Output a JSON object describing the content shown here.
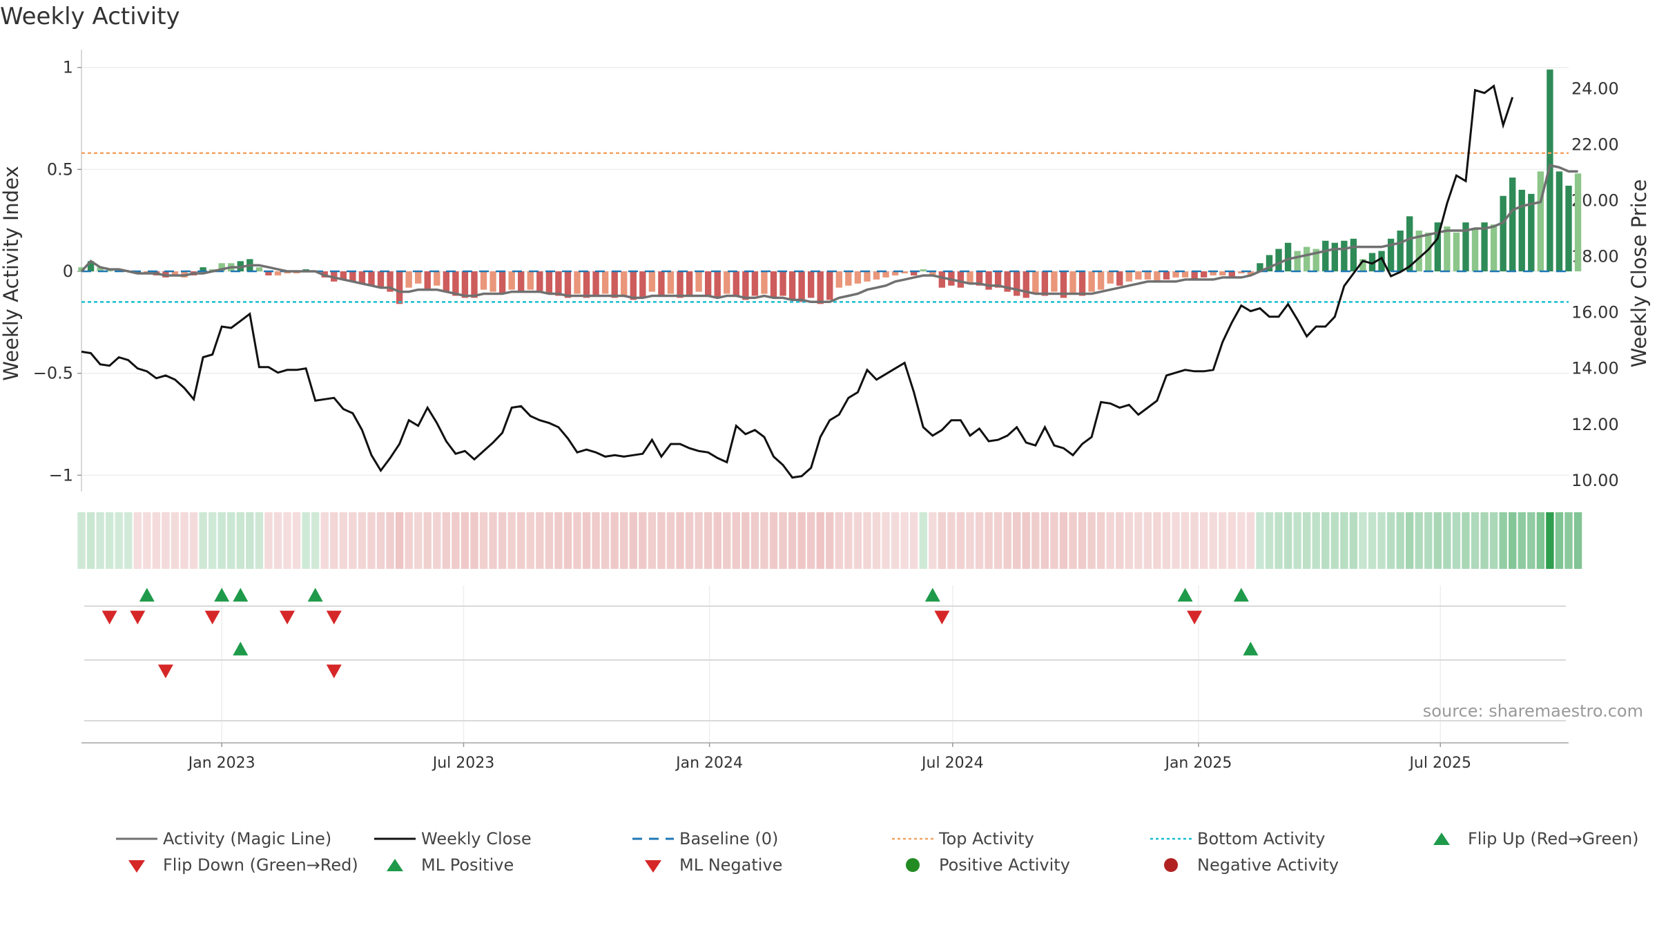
{
  "title": "Weekly Activity",
  "source": "source: sharemaestro.com",
  "colors": {
    "pos_strong": "#2e8b57",
    "pos_weak": "#8cc68a",
    "neg_strong": "#cd5c5c",
    "neg_weak": "#e9967a",
    "magic_line": "#707070",
    "close": "#111111",
    "baseline": "#1f77b4",
    "top": "#f4a261",
    "bottom": "#17becf",
    "flip_up": "#1e9a4a",
    "flip_down": "#d62728",
    "pos_dot": "#228b22",
    "neg_dot": "#b22222"
  },
  "legend": [
    {
      "label": "Activity (Magic Line)",
      "kind": "line",
      "color": "#707070"
    },
    {
      "label": "Weekly Close",
      "kind": "line",
      "color": "#111111"
    },
    {
      "label": "Baseline (0)",
      "kind": "dash",
      "color": "#1f77b4"
    },
    {
      "label": "Top Activity",
      "kind": "dot",
      "color": "#f4a261"
    },
    {
      "label": "Bottom Activity",
      "kind": "dot",
      "color": "#17becf"
    },
    {
      "label": "Flip Up (Red→Green)",
      "kind": "tri-up",
      "color": "#1e9a4a"
    },
    {
      "label": "Flip Down (Green→Red)",
      "kind": "tri-down",
      "color": "#d62728"
    },
    {
      "label": "ML Positive",
      "kind": "tri-up",
      "color": "#1e9a4a"
    },
    {
      "label": "ML Negative",
      "kind": "tri-down",
      "color": "#d62728"
    },
    {
      "label": "Positive Activity",
      "kind": "circle",
      "color": "#228b22"
    },
    {
      "label": "Negative Activity",
      "kind": "circle",
      "color": "#b22222"
    }
  ],
  "chart_data": {
    "type": "bar",
    "title": "Weekly Activity",
    "ylabel": "Weekly Activity Index",
    "y2label": "Weekly Close Price",
    "ylim": [
      -1.08,
      1.06
    ],
    "y2lim": [
      9.6,
      25.2
    ],
    "yticks": [
      "1",
      "0.5",
      "0",
      "−0.5",
      "−1"
    ],
    "ytick_values": [
      1,
      0.5,
      0,
      -0.5,
      -1
    ],
    "y2ticks": [
      "24.00",
      "22.00",
      "20.00",
      "18.00",
      "16.00",
      "14.00",
      "12.00",
      "10.00"
    ],
    "y2tick_values": [
      24,
      22,
      20,
      18,
      16,
      14,
      12,
      10
    ],
    "xlim": [
      "2022-09-18",
      "2025-10-05"
    ],
    "xticks": [
      {
        "date": "2023-01-01",
        "label": "Jan 2023"
      },
      {
        "date": "2023-07-01",
        "label": "Jul 2023"
      },
      {
        "date": "2024-01-01",
        "label": "Jan 2024"
      },
      {
        "date": "2024-07-01",
        "label": "Jul 2024"
      },
      {
        "date": "2025-01-01",
        "label": "Jan 2025"
      },
      {
        "date": "2025-07-01",
        "label": "Jul 2025"
      }
    ],
    "top_activity": 0.58,
    "bottom_activity": -0.15,
    "baseline": 0,
    "start_date": "2022-09-18",
    "series": [
      {
        "name": "Weekly Activity",
        "kind": "bar",
        "values": [
          0.02,
          0.05,
          0.02,
          0.01,
          0,
          0,
          -0.01,
          -0.01,
          -0.02,
          -0.03,
          -0.02,
          -0.03,
          -0.02,
          0.02,
          0.01,
          0.04,
          0.04,
          0.05,
          0.06,
          0.02,
          -0.02,
          -0.02,
          -0.01,
          -0.01,
          0.01,
          0,
          -0.03,
          -0.05,
          -0.04,
          -0.05,
          -0.06,
          -0.07,
          -0.08,
          -0.1,
          -0.16,
          -0.08,
          -0.06,
          -0.09,
          -0.07,
          -0.1,
          -0.12,
          -0.13,
          -0.13,
          -0.09,
          -0.1,
          -0.11,
          -0.09,
          -0.1,
          -0.09,
          -0.1,
          -0.11,
          -0.12,
          -0.13,
          -0.11,
          -0.13,
          -0.12,
          -0.11,
          -0.13,
          -0.12,
          -0.14,
          -0.13,
          -0.1,
          -0.12,
          -0.11,
          -0.13,
          -0.12,
          -0.1,
          -0.12,
          -0.13,
          -0.11,
          -0.12,
          -0.14,
          -0.12,
          -0.11,
          -0.13,
          -0.12,
          -0.14,
          -0.15,
          -0.13,
          -0.16,
          -0.14,
          -0.08,
          -0.07,
          -0.06,
          -0.05,
          -0.04,
          -0.03,
          -0.02,
          -0.01,
          -0.02,
          0.01,
          -0.02,
          -0.08,
          -0.07,
          -0.08,
          -0.06,
          -0.07,
          -0.09,
          -0.08,
          -0.1,
          -0.12,
          -0.13,
          -0.11,
          -0.12,
          -0.1,
          -0.13,
          -0.11,
          -0.12,
          -0.1,
          -0.09,
          -0.06,
          -0.07,
          -0.05,
          -0.04,
          -0.04,
          -0.05,
          -0.04,
          -0.03,
          -0.03,
          -0.04,
          -0.03,
          -0.02,
          -0.02,
          -0.03,
          -0.01,
          -0.02,
          0.04,
          0.08,
          0.11,
          0.14,
          0.1,
          0.12,
          0.11,
          0.15,
          0.14,
          0.15,
          0.16,
          0.06,
          0.09,
          0.1,
          0.16,
          0.2,
          0.27,
          0.2,
          0.19,
          0.24,
          0.22,
          0.19,
          0.24,
          0.21,
          0.24,
          0.23,
          0.37,
          0.46,
          0.4,
          0.38,
          0.49,
          0.99,
          0.49,
          0.42,
          0.48
        ],
        "strong": [
          0,
          1,
          0,
          0,
          0,
          0,
          1,
          0,
          1,
          1,
          0,
          0,
          1,
          1,
          0,
          0,
          0,
          1,
          1,
          0,
          1,
          0,
          0,
          0,
          1,
          0,
          1,
          1,
          1,
          1,
          1,
          1,
          1,
          1,
          1,
          0,
          0,
          1,
          0,
          1,
          1,
          1,
          1,
          0,
          0,
          1,
          0,
          1,
          0,
          1,
          1,
          1,
          1,
          0,
          1,
          1,
          0,
          1,
          0,
          1,
          1,
          0,
          1,
          0,
          1,
          1,
          0,
          1,
          1,
          0,
          1,
          1,
          1,
          0,
          1,
          1,
          1,
          1,
          1,
          1,
          1,
          0,
          0,
          0,
          0,
          0,
          0,
          0,
          0,
          1,
          0,
          0,
          1,
          1,
          1,
          0,
          1,
          1,
          1,
          1,
          1,
          1,
          0,
          1,
          0,
          1,
          0,
          1,
          0,
          0,
          0,
          1,
          0,
          0,
          0,
          0,
          1,
          0,
          0,
          1,
          1,
          0,
          0,
          1,
          0,
          0,
          1,
          1,
          1,
          1,
          0,
          0,
          0,
          1,
          1,
          1,
          1,
          0,
          1,
          1,
          1,
          1,
          1,
          0,
          0,
          1,
          0,
          0,
          1,
          0,
          1,
          0,
          1,
          1,
          1,
          1,
          0,
          1,
          1,
          1,
          0,
          0,
          1
        ]
      },
      {
        "name": "Activity (Magic Line)",
        "kind": "line",
        "values": [
          0,
          0.05,
          0.02,
          0.01,
          0.01,
          0,
          -0.01,
          -0.01,
          -0.01,
          -0.02,
          -0.02,
          -0.02,
          -0.01,
          -0.01,
          0,
          0.01,
          0.02,
          0.02,
          0.03,
          0.03,
          0.02,
          0.01,
          0,
          0,
          0,
          0,
          -0.02,
          -0.03,
          -0.04,
          -0.05,
          -0.06,
          -0.07,
          -0.08,
          -0.08,
          -0.1,
          -0.1,
          -0.09,
          -0.09,
          -0.09,
          -0.1,
          -0.11,
          -0.12,
          -0.12,
          -0.11,
          -0.11,
          -0.11,
          -0.1,
          -0.1,
          -0.1,
          -0.1,
          -0.11,
          -0.11,
          -0.12,
          -0.12,
          -0.12,
          -0.12,
          -0.12,
          -0.12,
          -0.12,
          -0.13,
          -0.13,
          -0.12,
          -0.12,
          -0.12,
          -0.12,
          -0.12,
          -0.12,
          -0.12,
          -0.13,
          -0.12,
          -0.12,
          -0.13,
          -0.13,
          -0.12,
          -0.13,
          -0.13,
          -0.14,
          -0.14,
          -0.15,
          -0.15,
          -0.15,
          -0.13,
          -0.12,
          -0.11,
          -0.09,
          -0.08,
          -0.07,
          -0.05,
          -0.04,
          -0.03,
          -0.02,
          -0.02,
          -0.03,
          -0.04,
          -0.05,
          -0.06,
          -0.06,
          -0.07,
          -0.07,
          -0.08,
          -0.09,
          -0.1,
          -0.11,
          -0.11,
          -0.11,
          -0.11,
          -0.11,
          -0.11,
          -0.11,
          -0.1,
          -0.09,
          -0.08,
          -0.07,
          -0.06,
          -0.05,
          -0.05,
          -0.05,
          -0.05,
          -0.04,
          -0.04,
          -0.04,
          -0.04,
          -0.03,
          -0.03,
          -0.03,
          -0.02,
          0,
          0.02,
          0.04,
          0.06,
          0.07,
          0.08,
          0.09,
          0.1,
          0.11,
          0.11,
          0.12,
          0.12,
          0.12,
          0.12,
          0.13,
          0.14,
          0.16,
          0.17,
          0.18,
          0.19,
          0.2,
          0.2,
          0.2,
          0.21,
          0.21,
          0.22,
          0.24,
          0.3,
          0.32,
          0.33,
          0.34,
          0.52,
          0.51,
          0.49,
          0.49
        ]
      },
      {
        "name": "Weekly Close",
        "kind": "line",
        "axis": "right",
        "values": [
          14.6,
          14.55,
          14.15,
          14.1,
          14.4,
          14.3,
          14.0,
          13.9,
          13.65,
          13.75,
          13.6,
          13.3,
          12.9,
          14.4,
          14.5,
          15.5,
          15.45,
          15.7,
          15.95,
          14.05,
          14.05,
          13.85,
          13.95,
          13.95,
          14.0,
          12.85,
          12.9,
          12.95,
          12.55,
          12.4,
          11.8,
          10.9,
          10.35,
          10.8,
          11.3,
          12.15,
          11.95,
          12.6,
          12.05,
          11.4,
          10.95,
          11.05,
          10.75,
          11.05,
          11.35,
          11.7,
          12.6,
          12.65,
          12.3,
          12.15,
          12.05,
          11.9,
          11.5,
          11.0,
          11.1,
          11.0,
          10.85,
          10.9,
          10.85,
          10.9,
          10.95,
          11.45,
          10.85,
          11.3,
          11.3,
          11.15,
          11.05,
          11.0,
          10.8,
          10.65,
          11.95,
          11.65,
          11.8,
          11.55,
          10.85,
          10.55,
          10.1,
          10.15,
          10.45,
          11.55,
          12.15,
          12.35,
          12.95,
          13.15,
          13.95,
          13.6,
          13.8,
          14.0,
          14.2,
          13.15,
          11.9,
          11.6,
          11.8,
          12.15,
          12.15,
          11.6,
          11.85,
          11.4,
          11.45,
          11.6,
          11.9,
          11.35,
          11.25,
          11.9,
          11.25,
          11.15,
          10.9,
          11.3,
          11.55,
          12.8,
          12.75,
          12.6,
          12.7,
          12.35,
          12.6,
          12.85,
          13.75,
          13.85,
          13.95,
          13.9,
          13.9,
          13.95,
          14.95,
          15.65,
          16.25,
          16.05,
          16.15,
          15.85,
          15.85,
          16.3,
          15.75,
          15.15,
          15.5,
          15.5,
          15.85,
          16.95,
          17.4,
          17.85,
          17.75,
          17.95,
          17.3,
          17.45,
          17.65,
          17.95,
          18.25,
          18.65,
          19.9,
          20.9,
          20.7,
          23.95,
          23.85,
          24.1,
          22.7,
          23.7
        ]
      }
    ],
    "flip_up": [
      "2022-11-06",
      "2023-01-01",
      "2023-01-15",
      "2023-03-12",
      "2024-06-16",
      "2024-12-22",
      "2025-02-02"
    ],
    "flip_down": [
      "2022-10-09",
      "2022-10-30",
      "2022-12-25",
      "2023-02-19",
      "2023-03-26",
      "2024-06-23",
      "2024-12-29"
    ],
    "ml_positive": [
      "2023-01-15",
      "2025-02-09"
    ],
    "ml_negative": [
      "2022-11-20",
      "2023-03-26"
    ]
  }
}
